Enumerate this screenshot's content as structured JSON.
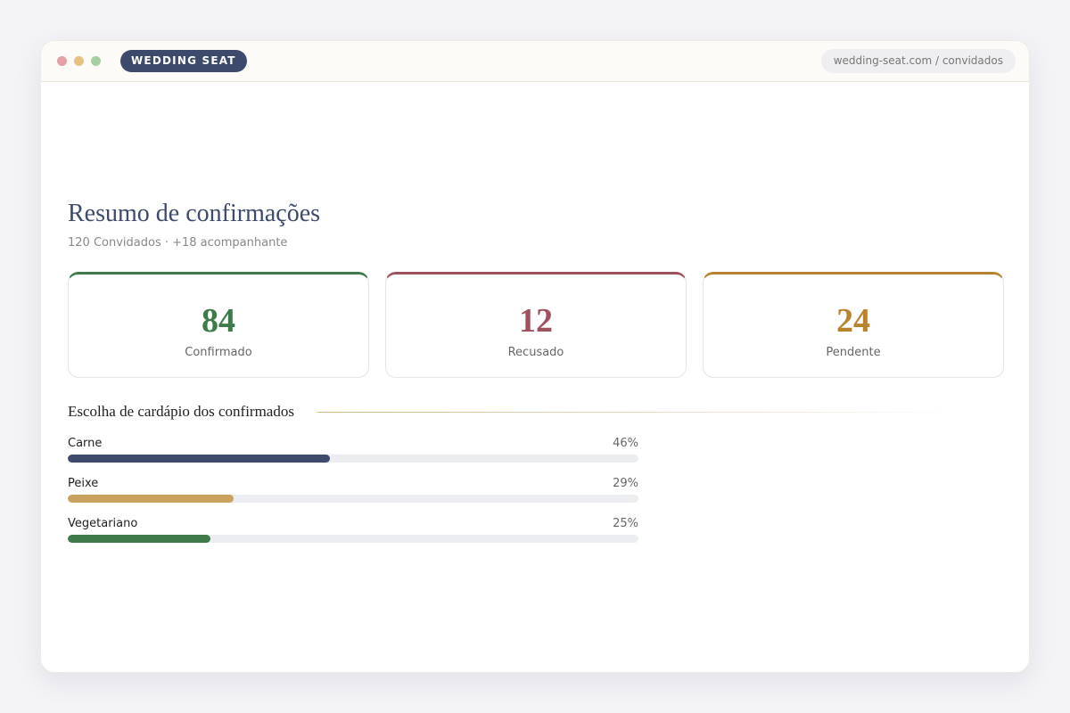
{
  "browser": {
    "brand": "WEDDING SEAT",
    "url": "wedding-seat.com / convidados"
  },
  "summary": {
    "title": "Resumo de confirmações",
    "subtitle": "120 Convidados · +18 acompanhante"
  },
  "stats": [
    {
      "value": 84,
      "label": "Confirmado",
      "color": "#3f7a4a"
    },
    {
      "value": 12,
      "label": "Recusado",
      "color": "#a0515e"
    },
    {
      "value": 24,
      "label": "Pendente",
      "color": "#b8832f"
    }
  ],
  "menu": {
    "title": "Escolha de cardápio dos confirmados",
    "items": [
      {
        "name": "Carne",
        "value": 46,
        "value_label": "46%",
        "color": "#3d4a6b"
      },
      {
        "name": "Peixe",
        "value": 29,
        "value_label": "29%",
        "color": "#c9a35e"
      },
      {
        "name": "Vegetariano",
        "value": 25,
        "value_label": "25%",
        "color": "#3f7a4a"
      }
    ]
  }
}
